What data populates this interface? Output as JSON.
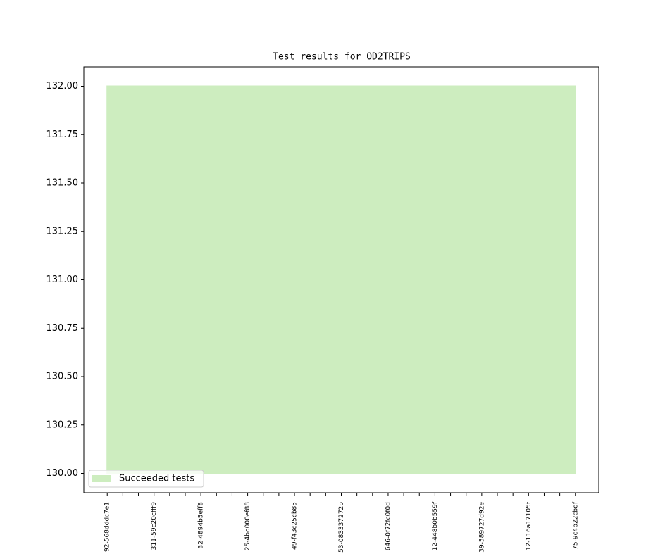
{
  "chart_data": {
    "type": "area",
    "title": "Test results for OD2TRIPS",
    "categories": [
      "92-568dddc7e1",
      null,
      null,
      "311-59c20cfff9",
      null,
      null,
      "32-4894b5eff8",
      null,
      null,
      "25-4bd000ef88",
      null,
      null,
      "49-f43c25cb85",
      null,
      null,
      "53-083337272b",
      null,
      null,
      "646-0f72fc0f0d",
      null,
      null,
      "12-448b0b559f",
      null,
      null,
      "39-589727d92e",
      null,
      null,
      "12-116a17105f",
      null,
      null,
      "75-9c4b22cbdf"
    ],
    "series": [
      {
        "name": "Succeeded tests",
        "color": "#cdedbf",
        "values": [
          132,
          132,
          132,
          132,
          132,
          132,
          132,
          132,
          132,
          132,
          132,
          132,
          132,
          132,
          132,
          132,
          132,
          132,
          132,
          132,
          132,
          132,
          132,
          132,
          132,
          132,
          132,
          132,
          132,
          132,
          132
        ],
        "base": [
          130,
          130,
          130,
          130,
          130,
          130,
          130,
          130,
          130,
          130,
          130,
          130,
          130,
          130,
          130,
          130,
          130,
          130,
          130,
          130,
          130,
          130,
          130,
          130,
          130,
          130,
          130,
          130,
          130,
          130,
          130
        ]
      }
    ],
    "ylim": [
      129.9,
      132.1
    ],
    "yticks": [
      {
        "value": 130,
        "label": "130.00"
      },
      {
        "value": 130.25,
        "label": "130.25"
      },
      {
        "value": 130.5,
        "label": "130.50"
      },
      {
        "value": 130.75,
        "label": "130.75"
      },
      {
        "value": 131,
        "label": "131.00"
      },
      {
        "value": 131.25,
        "label": "131.25"
      },
      {
        "value": 131.5,
        "label": "131.50"
      },
      {
        "value": 131.75,
        "label": "131.75"
      },
      {
        "value": 132,
        "label": "132.00"
      }
    ],
    "legend": "lower left"
  }
}
